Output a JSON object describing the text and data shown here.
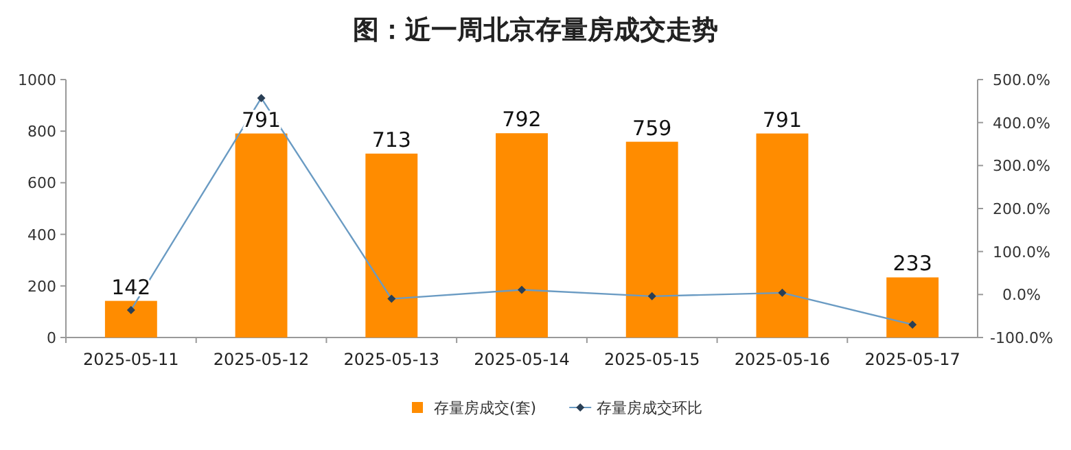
{
  "chart_data": {
    "type": "bar",
    "title": "图：近一周北京存量房成交走势",
    "categories": [
      "2025-05-11",
      "2025-05-12",
      "2025-05-13",
      "2025-05-14",
      "2025-05-15",
      "2025-05-16",
      "2025-05-17"
    ],
    "series": [
      {
        "name": "存量房成交(套)",
        "color": "#ff8c00",
        "values": [
          142,
          791,
          713,
          792,
          759,
          791,
          233
        ],
        "value_labels": [
          "142",
          "791",
          "713",
          "792",
          "759",
          "791",
          "233"
        ]
      },
      {
        "name": "存量房成交环比",
        "type": "line",
        "axis": "y2",
        "color": "#6a9bc3",
        "marker": "diamond",
        "values": [
          -36,
          457,
          -10,
          11,
          -4,
          4,
          -70
        ]
      }
    ],
    "ylim": [
      0,
      1000
    ],
    "yticks": [
      0,
      200,
      400,
      600,
      800,
      1000
    ],
    "y2lim": [
      -100,
      500
    ],
    "y2ticks": [
      {
        "value": -100,
        "label": "-100.0%"
      },
      {
        "value": 0,
        "label": "0.0%"
      },
      {
        "value": 100,
        "label": "100.0%"
      },
      {
        "value": 200,
        "label": "200.0%"
      },
      {
        "value": 300,
        "label": "300.0%"
      },
      {
        "value": 400,
        "label": "400.0%"
      },
      {
        "value": 500,
        "label": "500.0%"
      }
    ],
    "legend": "bottom"
  }
}
